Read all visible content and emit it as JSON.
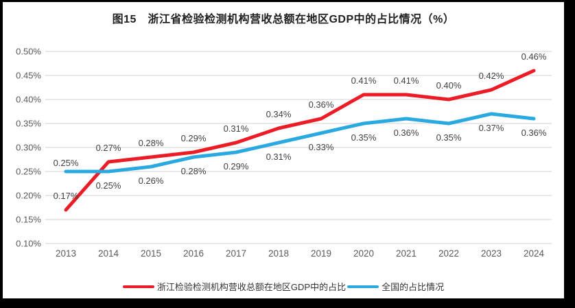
{
  "chart_data": {
    "type": "line",
    "title": "图15　浙江省检验检测机构营收总额在地区GDP中的占比情况（%）",
    "categories": [
      "2013",
      "2014",
      "2015",
      "2016",
      "2017",
      "2018",
      "2019",
      "2020",
      "2021",
      "2022",
      "2023",
      "2024"
    ],
    "series": [
      {
        "name": "浙江检验检测机构营收总额在地区GDP中的占比",
        "color": "#EB1C26",
        "values": [
          0.17,
          0.27,
          0.28,
          0.29,
          0.31,
          0.34,
          0.36,
          0.41,
          0.41,
          0.4,
          0.42,
          0.46
        ],
        "labels": [
          "0.17%",
          "0.27%",
          "0.28%",
          "0.29%",
          "0.31%",
          "0.34%",
          "0.36%",
          "0.41%",
          "0.41%",
          "0.40%",
          "0.42%",
          "0.46%"
        ]
      },
      {
        "name": "全国的占比情况",
        "color": "#29A9DF",
        "values": [
          0.25,
          0.25,
          0.26,
          0.28,
          0.29,
          0.31,
          0.33,
          0.35,
          0.36,
          0.35,
          0.37,
          0.36
        ],
        "labels": [
          "0.25%",
          "0.25%",
          "0.26%",
          "0.28%",
          "0.29%",
          "0.31%",
          "0.33%",
          "0.35%",
          "0.36%",
          "0.35%",
          "0.37%",
          "0.36%"
        ]
      }
    ],
    "y_ticks": [
      "0.50%",
      "0.45%",
      "0.40%",
      "0.35%",
      "0.30%",
      "0.25%",
      "0.20%",
      "0.15%",
      "0.10%"
    ],
    "ylim": [
      0.1,
      0.5
    ],
    "y_tick_step": 0.05,
    "grid": true,
    "legend_position": "bottom",
    "colors": {
      "gridline": "#D9D9D9",
      "axis_text": "#595959",
      "data_label_text": "#3F3F3F",
      "frame_border": "#000000",
      "background": "#FFFFFF"
    }
  }
}
